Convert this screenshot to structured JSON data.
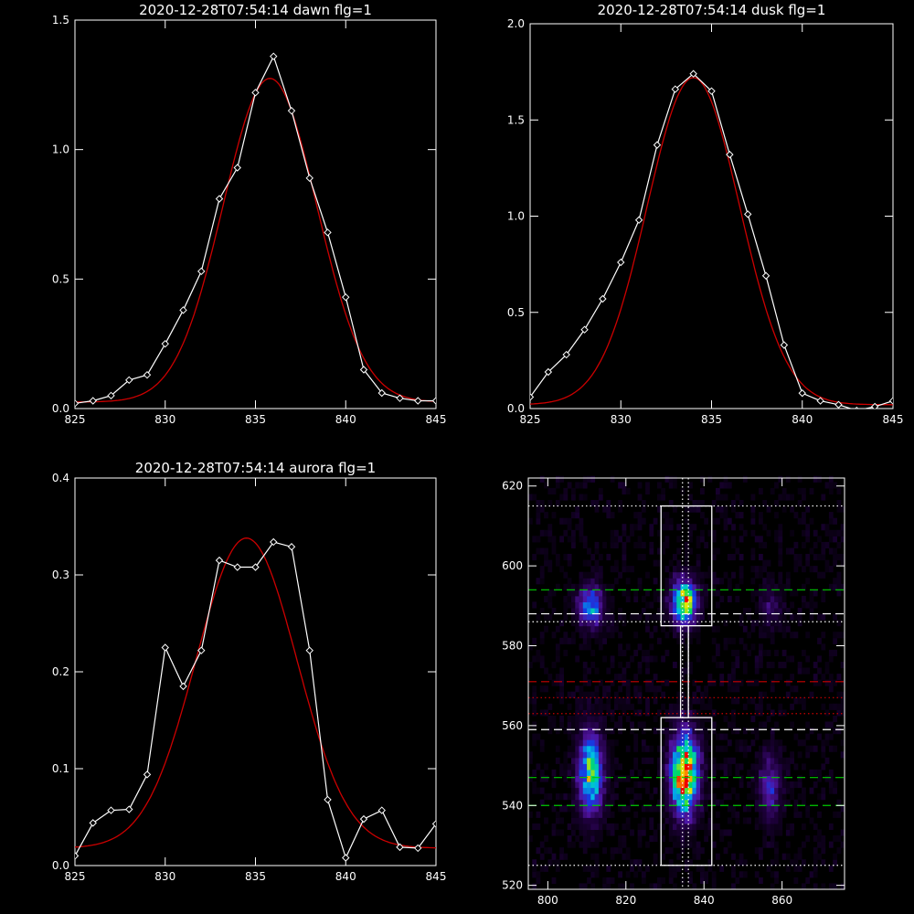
{
  "chart_data": [
    {
      "type": "line",
      "title": "2020-12-28T07:54:14 dawn flg=1",
      "xlim": [
        825,
        845
      ],
      "ylim": [
        0,
        1.5
      ],
      "xticks": [
        825,
        830,
        835,
        840,
        845
      ],
      "xtick_labels": [
        "825",
        "830",
        "835",
        "840",
        "845"
      ],
      "yticks": [
        0,
        0.5,
        1.0,
        1.5
      ],
      "ytick_labels": [
        "0.0",
        "0.5",
        "1.0",
        "1.5"
      ],
      "series": [
        {
          "kind": "data",
          "color": "#ffffff",
          "marker": "diamond",
          "x": [
            825,
            826,
            827,
            828,
            829,
            830,
            831,
            832,
            833,
            834,
            835,
            836,
            837,
            838,
            839,
            840,
            841,
            842,
            843,
            844,
            845
          ],
          "y": [
            0.02,
            0.03,
            0.05,
            0.11,
            0.13,
            0.25,
            0.38,
            0.53,
            0.81,
            0.93,
            1.22,
            1.36,
            1.15,
            0.89,
            0.68,
            0.43,
            0.15,
            0.06,
            0.04,
            0.03,
            0.03
          ]
        },
        {
          "kind": "fit",
          "color": "#cc0000",
          "model": "gaussian",
          "center": 835.8,
          "sigma": 2.6,
          "amplitude": 1.25,
          "offset": 0.025
        }
      ]
    },
    {
      "type": "line",
      "title": "2020-12-28T07:54:14 dusk flg=1",
      "xlim": [
        825,
        845
      ],
      "ylim": [
        0,
        2.0
      ],
      "xticks": [
        825,
        830,
        835,
        840,
        845
      ],
      "xtick_labels": [
        "825",
        "830",
        "835",
        "840",
        "845"
      ],
      "yticks": [
        0,
        0.5,
        1.0,
        1.5,
        2.0
      ],
      "ytick_labels": [
        "0.0",
        "0.5",
        "1.0",
        "1.5",
        "2.0"
      ],
      "series": [
        {
          "kind": "data",
          "color": "#ffffff",
          "marker": "diamond",
          "x": [
            825,
            826,
            827,
            828,
            829,
            830,
            831,
            832,
            833,
            834,
            835,
            836,
            837,
            838,
            839,
            840,
            841,
            842,
            843,
            844,
            845
          ],
          "y": [
            0.06,
            0.19,
            0.28,
            0.41,
            0.57,
            0.76,
            0.98,
            1.37,
            1.66,
            1.74,
            1.65,
            1.32,
            1.01,
            0.69,
            0.33,
            0.08,
            0.04,
            0.02,
            -0.01,
            0.01,
            0.04
          ]
        },
        {
          "kind": "fit",
          "color": "#cc0000",
          "model": "gaussian",
          "center": 834.0,
          "sigma": 2.55,
          "amplitude": 1.7,
          "offset": 0.02
        }
      ]
    },
    {
      "type": "line",
      "title": "2020-12-28T07:54:14 aurora flg=1",
      "xlim": [
        825,
        845
      ],
      "ylim": [
        0,
        0.4
      ],
      "xticks": [
        825,
        830,
        835,
        840,
        845
      ],
      "xtick_labels": [
        "825",
        "830",
        "835",
        "840",
        "845"
      ],
      "yticks": [
        0,
        0.1,
        0.2,
        0.3,
        0.4
      ],
      "ytick_labels": [
        "0.0",
        "0.1",
        "0.2",
        "0.3",
        "0.4"
      ],
      "series": [
        {
          "kind": "data",
          "color": "#ffffff",
          "marker": "diamond",
          "x": [
            825,
            826,
            827,
            828,
            829,
            830,
            831,
            832,
            833,
            834,
            835,
            836,
            837,
            838,
            839,
            840,
            841,
            842,
            843,
            844,
            845
          ],
          "y": [
            0.01,
            0.044,
            0.057,
            0.058,
            0.094,
            0.225,
            0.185,
            0.222,
            0.315,
            0.308,
            0.308,
            0.334,
            0.329,
            0.222,
            0.068,
            0.008,
            0.048,
            0.057,
            0.019,
            0.018,
            0.043
          ]
        },
        {
          "kind": "fit",
          "color": "#cc0000",
          "model": "gaussian",
          "center": 834.5,
          "sigma": 2.8,
          "amplitude": 0.32,
          "offset": 0.018
        }
      ]
    },
    {
      "type": "heatmap",
      "colormap": "rainbow",
      "xlim": [
        795,
        876
      ],
      "ylim": [
        519,
        622
      ],
      "xticks": [
        800,
        820,
        840,
        860
      ],
      "xtick_labels": [
        "800",
        "820",
        "840",
        "860"
      ],
      "yticks": [
        520,
        540,
        560,
        580,
        600,
        620
      ],
      "ytick_labels": [
        "520",
        "540",
        "560",
        "580",
        "600",
        "620"
      ],
      "emission_blobs": [
        {
          "x": 835,
          "y": 591,
          "sx": 2.2,
          "sy": 4.0,
          "peak": 0.8
        },
        {
          "x": 835,
          "y": 548,
          "sx": 2.4,
          "sy": 7.0,
          "peak": 1.0
        },
        {
          "x": 811,
          "y": 590,
          "sx": 2.2,
          "sy": 3.5,
          "peak": 0.55
        },
        {
          "x": 811,
          "y": 548,
          "sx": 2.2,
          "sy": 7.0,
          "peak": 0.7
        },
        {
          "x": 857,
          "y": 590,
          "sx": 2.0,
          "sy": 3.5,
          "peak": 0.18
        },
        {
          "x": 857,
          "y": 545,
          "sx": 2.0,
          "sy": 6.0,
          "peak": 0.3
        }
      ],
      "boxes": [
        {
          "x": [
            829,
            842
          ],
          "y": [
            585,
            615
          ],
          "color": "#ffffff"
        },
        {
          "x": [
            829,
            842
          ],
          "y": [
            525,
            562
          ],
          "color": "#ffffff"
        }
      ],
      "hlines": [
        {
          "y": 615,
          "color": "#ffffff",
          "style": "dotted"
        },
        {
          "y": 594,
          "color": "#00cc00",
          "style": "dashed"
        },
        {
          "y": 588,
          "color": "#ffffff",
          "style": "dashed"
        },
        {
          "y": 586,
          "color": "#ffffff",
          "style": "dotted"
        },
        {
          "y": 571,
          "color": "#cc0000",
          "style": "dashed"
        },
        {
          "y": 567,
          "color": "#cc0000",
          "style": "dotted"
        },
        {
          "y": 563,
          "color": "#cc0000",
          "style": "dotted"
        },
        {
          "y": 559,
          "color": "#ffffff",
          "style": "dashed"
        },
        {
          "y": 547,
          "color": "#00cc00",
          "style": "dashed"
        },
        {
          "y": 540,
          "color": "#00cc00",
          "style": "dashed"
        },
        {
          "y": 525,
          "color": "#ffffff",
          "style": "dotted"
        }
      ],
      "vlines": [
        {
          "x": 834.5,
          "color": "#ffffff",
          "style": "dotted"
        },
        {
          "x": 836,
          "color": "#ffffff",
          "style": "dotted"
        }
      ],
      "connector": {
        "x": [
          834,
          836
        ],
        "y": [
          562,
          585
        ],
        "color": "#ffffff"
      }
    }
  ]
}
